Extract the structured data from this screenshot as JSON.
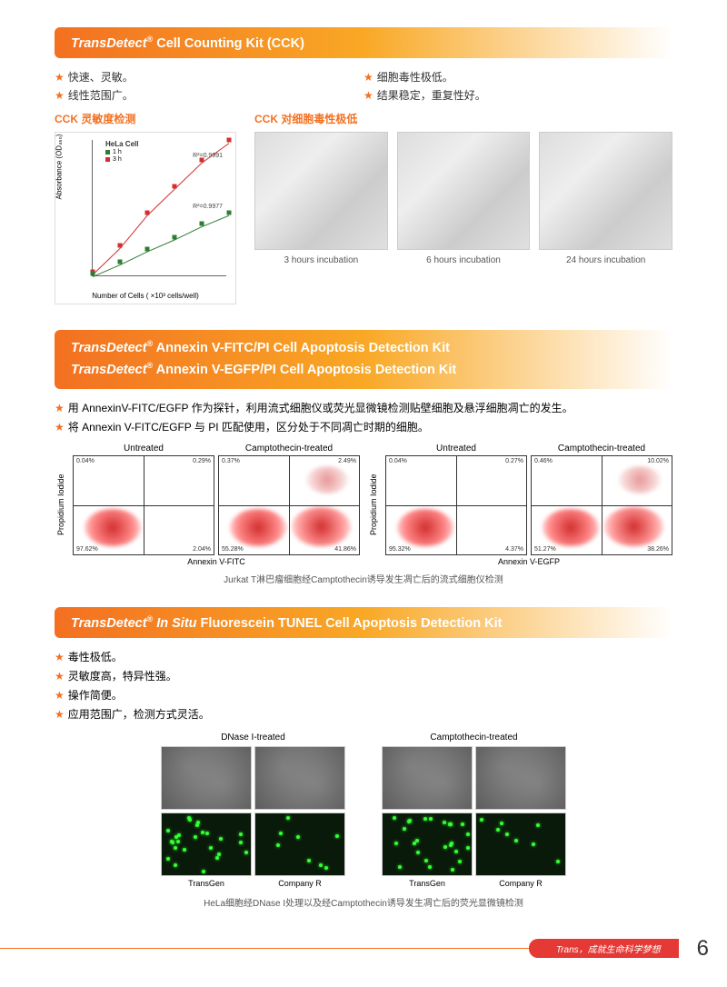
{
  "section1": {
    "title_brand": "TransDetect",
    "title_rest": " Cell Counting Kit (CCK)",
    "bullets_left": [
      "快速、灵敏。",
      "线性范围广。"
    ],
    "bullets_right": [
      "细胞毒性极低。",
      "结果稳定，重复性好。"
    ],
    "sub1": "CCK 灵敏度检测",
    "sub2": "CCK 对细胞毒性极低",
    "chart": {
      "title": "HeLa Cell",
      "legend": [
        {
          "label": "1 h",
          "color": "#2e7d32"
        },
        {
          "label": "3 h",
          "color": "#d32f2f"
        }
      ],
      "ylabel": "Absorbance (OD₄₅₀)",
      "xlabel": "Number of Cells ( ×10³ cells/well)",
      "r2_a": "R²=0.9991",
      "r2_b": "R²=0.9977",
      "xmax": 25,
      "ymax": 2.1,
      "xticks": [
        0,
        5,
        10,
        15,
        20,
        25
      ],
      "series_1h": [
        [
          0,
          0.02
        ],
        [
          5,
          0.2
        ],
        [
          10,
          0.4
        ],
        [
          15,
          0.58
        ],
        [
          20,
          0.78
        ],
        [
          25,
          0.95
        ]
      ],
      "series_3h": [
        [
          0,
          0.05
        ],
        [
          5,
          0.45
        ],
        [
          10,
          0.95
        ],
        [
          15,
          1.35
        ],
        [
          20,
          1.75
        ],
        [
          25,
          2.05
        ]
      ],
      "line_color_1h": "#2e7d32",
      "line_color_3h": "#d32f2f"
    },
    "micros": [
      {
        "caption": "3 hours incubation"
      },
      {
        "caption": "6 hours incubation"
      },
      {
        "caption": "24 hours incubation"
      }
    ]
  },
  "section2": {
    "title_line1_rest": " Annexin V-FITC/PI Cell Apoptosis Detection Kit",
    "title_line2_rest": " Annexin V-EGFP/PI Cell Apoptosis Detection Kit",
    "bullets": [
      "用 AnnexinV-FITC/EGFP 作为探针，利用流式细胞仪或荧光显微镜检测贴壁细胞及悬浮细胞凋亡的发生。",
      "将 Annexin V-FITC/EGFP 与 PI 匹配使用，区分处于不同凋亡时期的细胞。"
    ],
    "ylabel": "Propidium Iodide",
    "xlabel_left": "Annexin V-FITC",
    "xlabel_right": "Annexin V-EGFP",
    "plots": [
      {
        "title": "Untreated",
        "q": [
          "0.04%",
          "0.29%",
          "97.62%",
          "2.04%"
        ],
        "red": false
      },
      {
        "title": "Camptothecin-treated",
        "q": [
          "0.37%",
          "2.49%",
          "55.28%",
          "41.86%"
        ],
        "red": true
      },
      {
        "title": "Untreated",
        "q": [
          "0.04%",
          "0.27%",
          "95.32%",
          "4.37%"
        ],
        "red": false
      },
      {
        "title": "Camptothecin-treated",
        "q": [
          "0.46%",
          "10.02%",
          "51.27%",
          "38.26%"
        ],
        "red": true
      }
    ],
    "axis_ticks": [
      "10⁰",
      "10¹",
      "10²",
      "10³",
      "10⁴"
    ],
    "caption": "Jurkat T淋巴瘤细胞经Camptothecin诱导发生凋亡后的流式细胞仪检测"
  },
  "section3": {
    "title_brand": "TransDetect",
    "title_mid": " In Situ",
    "title_rest": " Fluorescein TUNEL Cell Apoptosis Detection Kit",
    "bullets": [
      "毒性极低。",
      "灵敏度高，特异性强。",
      "操作简便。",
      "应用范围广，检测方式灵活。"
    ],
    "cols": [
      {
        "title": "DNase I-treated",
        "sub": [
          "TransGen",
          "Company R"
        ]
      },
      {
        "title": "Camptothecin-treated",
        "sub": [
          "TransGen",
          "Company R"
        ]
      }
    ],
    "caption": "HeLa细胞经DNase I处理以及经Camptothecin诱导发生凋亡后的荧光显微镜检测"
  },
  "footer": {
    "tag": "Trans，成就生命科学梦想",
    "page": "6"
  }
}
